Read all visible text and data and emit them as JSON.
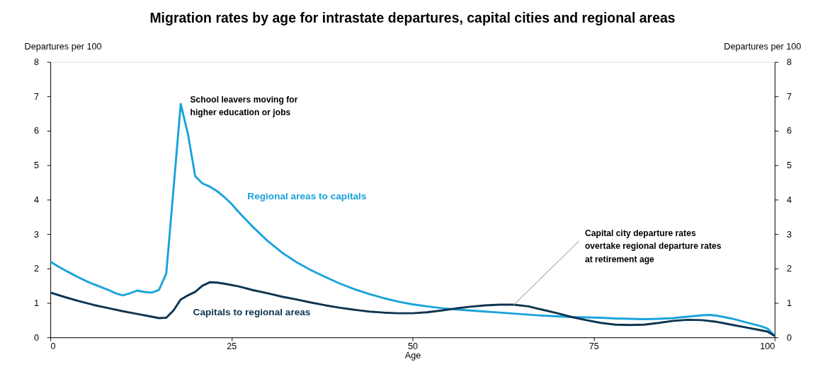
{
  "chart_data": {
    "type": "line",
    "title": "Migration rates by age for intrastate departures, capital cities and regional areas",
    "xlabel": "Age",
    "ylabel": "Departures per 100",
    "y2label": "Departures per 100",
    "xlim": [
      0,
      100
    ],
    "xticks": [
      0,
      25,
      50,
      75,
      100
    ],
    "ylim": [
      0,
      8
    ],
    "yticks": [
      0,
      1,
      2,
      3,
      4,
      5,
      6,
      7,
      8
    ],
    "y2lim": [
      0,
      8
    ],
    "y2ticks": [
      0,
      1,
      2,
      3,
      4,
      5,
      6,
      7,
      8
    ],
    "grid": false,
    "legend": false,
    "marker": "none",
    "line_style": "solid",
    "series": [
      {
        "name": "Regional areas to capitals",
        "color": "#1aa3dc",
        "x": [
          0,
          1,
          2,
          3,
          4,
          5,
          6,
          7,
          8,
          9,
          10,
          11,
          12,
          13,
          14,
          15,
          16,
          17,
          18,
          19,
          20,
          21,
          22,
          23,
          24,
          25,
          26,
          27,
          28,
          29,
          30,
          32,
          34,
          36,
          38,
          40,
          42,
          44,
          46,
          48,
          50,
          52,
          54,
          56,
          58,
          60,
          62,
          64,
          66,
          68,
          70,
          72,
          74,
          76,
          78,
          80,
          82,
          84,
          86,
          88,
          90,
          91,
          92,
          94,
          96,
          98,
          99,
          100
        ],
        "values": [
          2.2,
          2.07,
          1.95,
          1.84,
          1.73,
          1.63,
          1.54,
          1.46,
          1.38,
          1.28,
          1.22,
          1.28,
          1.36,
          1.32,
          1.3,
          1.38,
          1.85,
          4.3,
          6.78,
          5.9,
          4.68,
          4.47,
          4.38,
          4.25,
          4.08,
          3.88,
          3.64,
          3.42,
          3.2,
          3.0,
          2.8,
          2.46,
          2.18,
          1.95,
          1.75,
          1.56,
          1.4,
          1.26,
          1.14,
          1.04,
          0.96,
          0.9,
          0.85,
          0.81,
          0.78,
          0.75,
          0.72,
          0.69,
          0.66,
          0.63,
          0.61,
          0.59,
          0.58,
          0.57,
          0.55,
          0.54,
          0.53,
          0.54,
          0.56,
          0.6,
          0.64,
          0.65,
          0.63,
          0.55,
          0.44,
          0.33,
          0.26,
          0.05
        ]
      },
      {
        "name": "Capitals to regional areas",
        "color": "#0d3450",
        "x": [
          0,
          2,
          4,
          6,
          8,
          10,
          12,
          14,
          15,
          16,
          17,
          18,
          19,
          20,
          21,
          22,
          23,
          24,
          26,
          28,
          30,
          32,
          34,
          36,
          38,
          40,
          42,
          44,
          46,
          48,
          50,
          52,
          54,
          56,
          58,
          60,
          62,
          64,
          66,
          68,
          70,
          72,
          74,
          76,
          78,
          80,
          82,
          84,
          86,
          88,
          90,
          92,
          94,
          96,
          98,
          99,
          100
        ],
        "values": [
          1.3,
          1.17,
          1.05,
          0.94,
          0.85,
          0.76,
          0.68,
          0.6,
          0.56,
          0.57,
          0.78,
          1.1,
          1.22,
          1.32,
          1.5,
          1.6,
          1.59,
          1.56,
          1.48,
          1.37,
          1.28,
          1.18,
          1.1,
          1.01,
          0.93,
          0.86,
          0.8,
          0.75,
          0.72,
          0.7,
          0.7,
          0.73,
          0.78,
          0.84,
          0.89,
          0.93,
          0.95,
          0.95,
          0.9,
          0.8,
          0.7,
          0.59,
          0.5,
          0.42,
          0.37,
          0.36,
          0.37,
          0.42,
          0.48,
          0.51,
          0.5,
          0.45,
          0.37,
          0.29,
          0.21,
          0.17,
          0.04
        ]
      }
    ],
    "annotations": [
      {
        "text": "School leavers moving for\nhigher education or jobs",
        "x": 18,
        "y": 6.78
      },
      {
        "text": "Capital city departure rates\novertake regional departure rates\nat retirement age",
        "x": 64,
        "y": 0.95
      }
    ]
  }
}
